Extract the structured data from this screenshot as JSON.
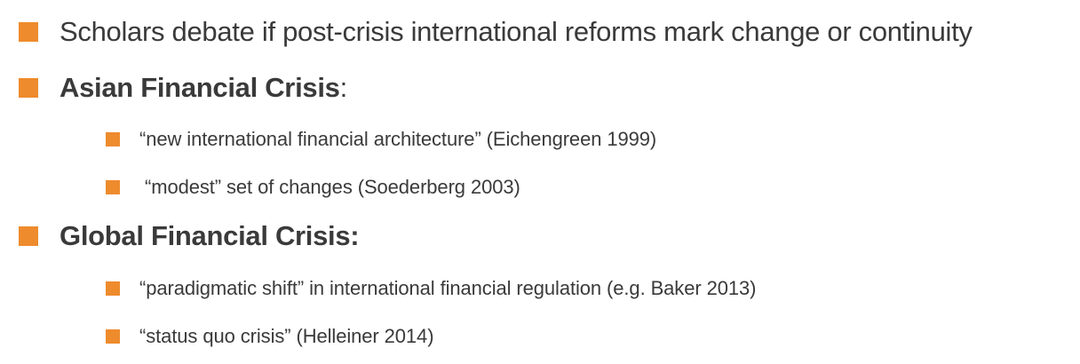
{
  "colors": {
    "bullet": "#EE8B2D",
    "text": "#3A3A3A"
  },
  "bullets": [
    {
      "level": 1,
      "text": "Scholars debate if post-crisis international reforms mark change or continuity"
    },
    {
      "level": 1,
      "bold_text": "Asian Financial Crisis",
      "suffix": ":"
    },
    {
      "level": 2,
      "text": "“new international financial architecture” (Eichengreen 1999)"
    },
    {
      "level": 2,
      "text": " “modest” set of changes (Soederberg 2003)"
    },
    {
      "level": 1,
      "bold_text": "Global Financial Crisis:"
    },
    {
      "level": 2,
      "text": "“paradigmatic shift” in international financial regulation (e.g. Baker 2013)"
    },
    {
      "level": 2,
      "text": "“status quo crisis” (Helleiner 2014)"
    }
  ]
}
